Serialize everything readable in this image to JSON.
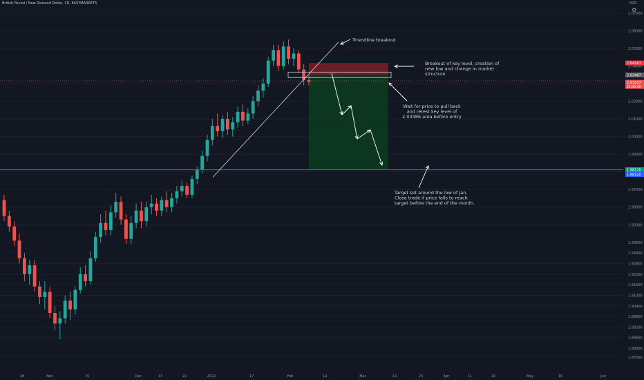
{
  "header": {
    "symbol": "British Pound / New Zealand Dollar, 1D, EASYMARKETS",
    "currency": "NZD",
    "gear": "gear-icon"
  },
  "colors": {
    "background": "#131722",
    "up": "#26a69a",
    "down": "#ef5350",
    "target_line": "#2962ff",
    "profit_zone": "#0d3a20",
    "stop_zone": "#7a1f26",
    "key_level_box": "#cfd2da"
  },
  "chart_data": {
    "type": "candlestick",
    "yaxis": {
      "range": [
        1.8675,
        2.075
      ],
      "ticks": [
        "2.07000",
        "2.06000",
        "2.05000",
        "2.04000",
        "2.03000",
        "2.02000",
        "2.01000",
        "2.00000",
        "1.99000",
        "1.98000",
        "1.97000",
        "1.96000",
        "1.95000",
        "1.94000",
        "1.93400",
        "1.92800",
        "1.92200",
        "1.91600",
        "1.91000",
        "1.90400",
        "1.89800",
        "1.89200",
        "1.88600",
        "1.88000",
        "1.87500"
      ]
    },
    "xaxis": {
      "ticks": [
        "28",
        "Nov",
        "15",
        "Dec",
        "13",
        "22",
        "2022",
        "17",
        "Feb",
        "14",
        "Mar",
        "14",
        "23",
        "Apr",
        "11",
        "20",
        "May",
        "16",
        "Jun"
      ]
    },
    "price_labels": {
      "stop": "2.04167",
      "entry": "2.03487",
      "current": "2.03157",
      "current_sub": "21:03:48",
      "target": "1.98120",
      "target_blue": "1.98120"
    },
    "candles": [
      [
        1.964,
        1.967,
        1.952,
        1.955
      ],
      [
        1.955,
        1.958,
        1.946,
        1.949
      ],
      [
        1.949,
        1.952,
        1.938,
        1.941
      ],
      [
        1.941,
        1.945,
        1.928,
        1.931
      ],
      [
        1.931,
        1.934,
        1.918,
        1.922
      ],
      [
        1.922,
        1.93,
        1.916,
        1.927
      ],
      [
        1.927,
        1.93,
        1.912,
        1.915
      ],
      [
        1.915,
        1.918,
        1.905,
        1.909
      ],
      [
        1.909,
        1.918,
        1.902,
        1.912
      ],
      [
        1.912,
        1.915,
        1.897,
        1.9
      ],
      [
        1.9,
        1.904,
        1.89,
        1.894
      ],
      [
        1.894,
        1.901,
        1.885,
        1.897
      ],
      [
        1.897,
        1.91,
        1.894,
        1.907
      ],
      [
        1.907,
        1.912,
        1.896,
        1.902
      ],
      [
        1.902,
        1.915,
        1.899,
        1.913
      ],
      [
        1.913,
        1.926,
        1.911,
        1.922
      ],
      [
        1.922,
        1.927,
        1.915,
        1.918
      ],
      [
        1.918,
        1.935,
        1.916,
        1.931
      ],
      [
        1.931,
        1.946,
        1.929,
        1.943
      ],
      [
        1.943,
        1.956,
        1.94,
        1.951
      ],
      [
        1.951,
        1.958,
        1.944,
        1.947
      ],
      [
        1.947,
        1.961,
        1.944,
        1.957
      ],
      [
        1.957,
        1.968,
        1.954,
        1.963
      ],
      [
        1.963,
        1.966,
        1.95,
        1.953
      ],
      [
        1.953,
        1.956,
        1.939,
        1.942
      ],
      [
        1.942,
        1.955,
        1.939,
        1.951
      ],
      [
        1.951,
        1.962,
        1.948,
        1.958
      ],
      [
        1.958,
        1.963,
        1.948,
        1.952
      ],
      [
        1.952,
        1.963,
        1.949,
        1.96
      ],
      [
        1.96,
        1.967,
        1.956,
        1.962
      ],
      [
        1.962,
        1.965,
        1.955,
        1.958
      ],
      [
        1.958,
        1.966,
        1.955,
        1.964
      ],
      [
        1.964,
        1.969,
        1.957,
        1.96
      ],
      [
        1.96,
        1.968,
        1.957,
        1.965
      ],
      [
        1.965,
        1.972,
        1.962,
        1.969
      ],
      [
        1.969,
        1.975,
        1.966,
        1.972
      ],
      [
        1.972,
        1.974,
        1.965,
        1.967
      ],
      [
        1.967,
        1.978,
        1.965,
        1.976
      ],
      [
        1.976,
        1.983,
        1.973,
        1.981
      ],
      [
        1.981,
        1.992,
        1.979,
        1.989
      ],
      [
        1.989,
        2.001,
        1.986,
        1.998
      ],
      [
        1.998,
        2.01,
        1.995,
        2.006
      ],
      [
        2.006,
        2.013,
        2.0,
        2.003
      ],
      [
        2.003,
        2.012,
        1.999,
        2.01
      ],
      [
        2.01,
        2.014,
        2.001,
        2.004
      ],
      [
        2.004,
        2.011,
        2.0,
        2.008
      ],
      [
        2.008,
        2.017,
        2.005,
        2.014
      ],
      [
        2.014,
        2.018,
        2.006,
        2.009
      ],
      [
        2.009,
        2.016,
        2.007,
        2.013
      ],
      [
        2.013,
        2.023,
        2.01,
        2.02
      ],
      [
        2.02,
        2.029,
        2.017,
        2.026
      ],
      [
        2.026,
        2.033,
        2.022,
        2.03
      ],
      [
        2.03,
        2.045,
        2.028,
        2.043
      ],
      [
        2.043,
        2.052,
        2.04,
        2.049
      ],
      [
        2.049,
        2.052,
        2.037,
        2.04
      ],
      [
        2.04,
        2.054,
        2.038,
        2.051
      ],
      [
        2.051,
        2.055,
        2.041,
        2.044
      ],
      [
        2.044,
        2.05,
        2.04,
        2.047
      ],
      [
        2.047,
        2.049,
        2.036,
        2.038
      ],
      [
        2.038,
        2.041,
        2.029,
        2.032
      ],
      [
        2.032,
        2.035,
        2.029,
        2.031
      ]
    ],
    "annotations": {
      "trendline_label": "Trrendline breakout",
      "breakout_note": [
        "Breakout of key level, creation of",
        "new low and change in market",
        "structure"
      ],
      "entry_note": [
        "Wait for price to pull back",
        "and retest key level of",
        "2.03486 area before entry"
      ],
      "target_note": [
        "Target set around the low of Jan.",
        "Close trade if price falls to reach",
        "target before the end of the month."
      ]
    },
    "levels": {
      "stop": 2.04167,
      "entry": 2.03487,
      "target": 1.9812,
      "key_level_top": 2.0365,
      "key_level_bottom": 2.0334
    }
  }
}
